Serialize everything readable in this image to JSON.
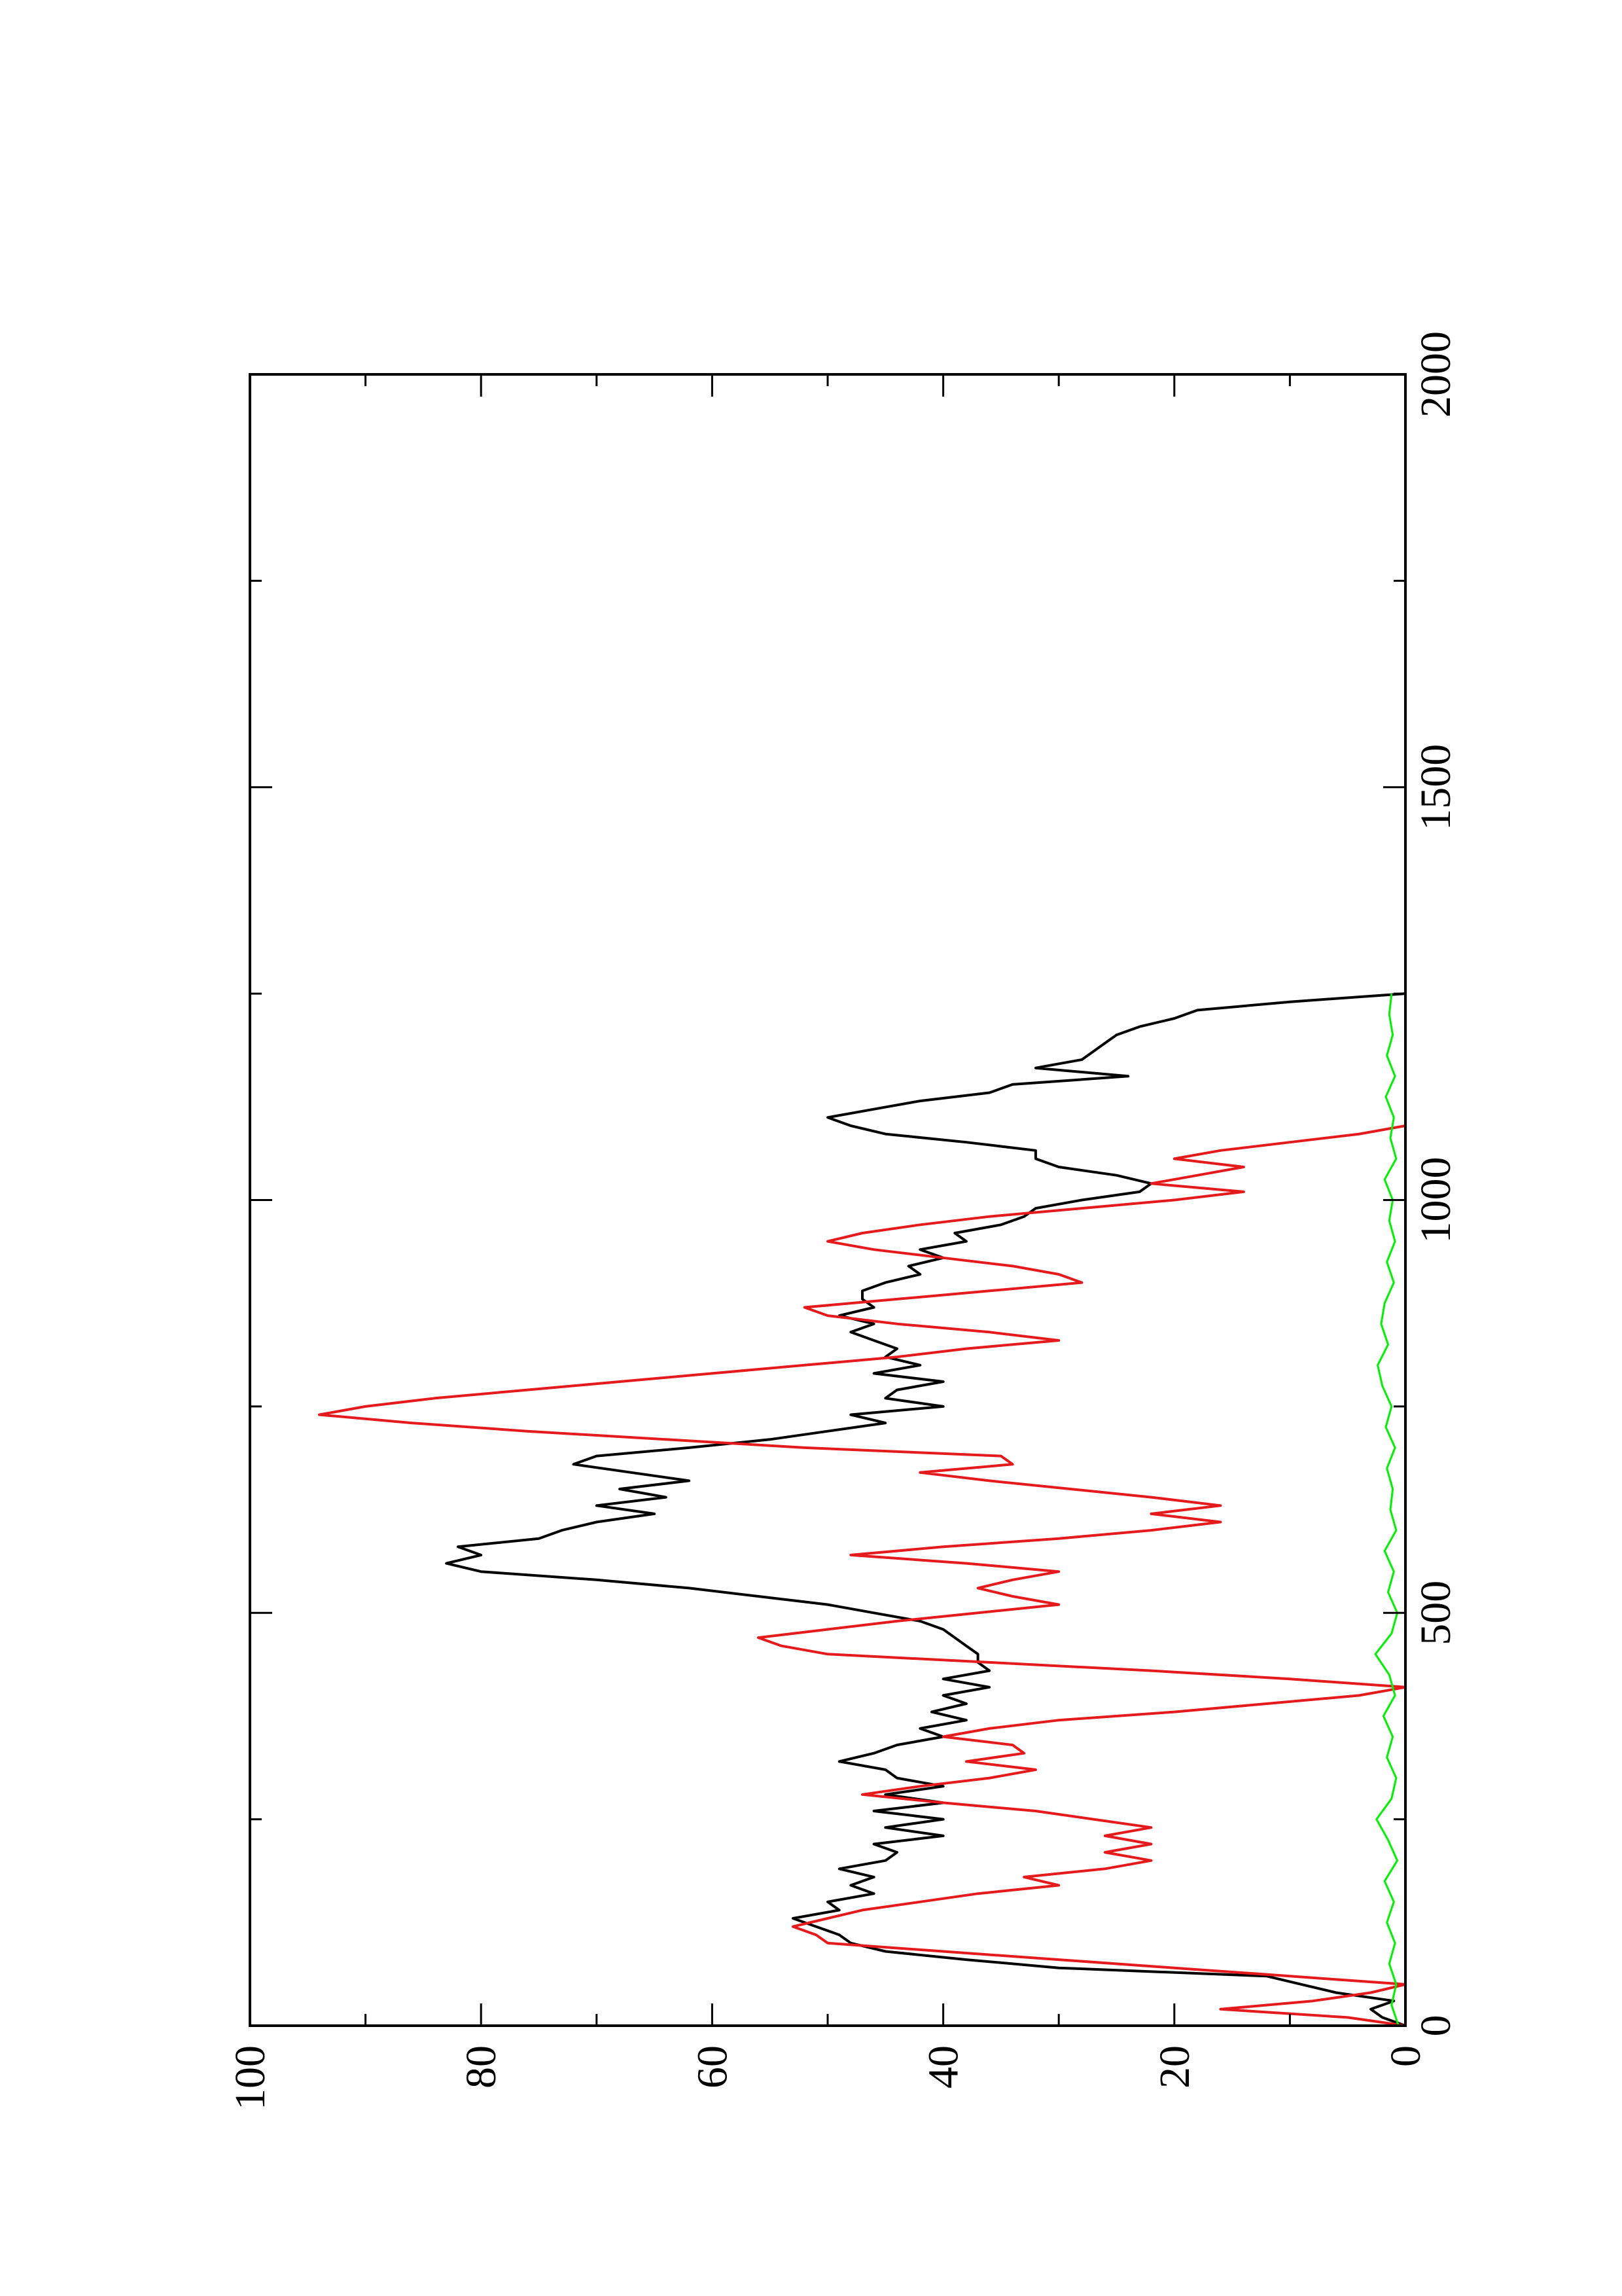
{
  "chart_data": {
    "type": "line",
    "title": "",
    "xlabel": "",
    "ylabel": "",
    "orientation": "rotated 90 degrees counter-clockwise",
    "xlim": [
      0,
      2000
    ],
    "ylim": [
      0,
      100
    ],
    "x_ticks": [
      0,
      500,
      1000,
      1500,
      2000
    ],
    "x_tick_labels": [
      "0",
      "500",
      "1000",
      "1500",
      "2000"
    ],
    "x_minor_ticks": [
      250,
      750,
      1250,
      1750
    ],
    "y_ticks": [
      0,
      20,
      40,
      60,
      80,
      100
    ],
    "y_tick_labels": [
      "0",
      "20",
      "40",
      "60",
      "80",
      "100"
    ],
    "y_minor_ticks": [
      10,
      30,
      50,
      70,
      90
    ],
    "grid": false,
    "legend": "none",
    "series": [
      {
        "color": "#000000",
        "x": [
          0,
          10,
          20,
          30,
          40,
          50,
          60,
          70,
          80,
          90,
          100,
          110,
          120,
          130,
          140,
          150,
          160,
          170,
          180,
          190,
          200,
          210,
          220,
          230,
          240,
          250,
          260,
          270,
          280,
          290,
          300,
          310,
          320,
          330,
          340,
          350,
          360,
          370,
          380,
          390,
          400,
          410,
          420,
          430,
          440,
          450,
          460,
          470,
          480,
          490,
          500,
          510,
          520,
          530,
          540,
          550,
          560,
          570,
          580,
          590,
          600,
          610,
          620,
          630,
          640,
          650,
          660,
          670,
          680,
          690,
          700,
          710,
          720,
          730,
          740,
          750,
          760,
          770,
          780,
          790,
          800,
          810,
          820,
          830,
          840,
          850,
          860,
          870,
          880,
          890,
          900,
          910,
          920,
          930,
          940,
          950,
          960,
          970,
          980,
          990,
          1000,
          1010,
          1020,
          1030,
          1040,
          1050,
          1060,
          1070,
          1080,
          1090,
          1100,
          1110,
          1120,
          1130,
          1140,
          1150,
          1160,
          1170,
          1180,
          1190,
          1200,
          1210,
          1220,
          1230,
          1240,
          1250
        ],
        "y": [
          0,
          2,
          3,
          1,
          6,
          9,
          12,
          30,
          38,
          45,
          48,
          49,
          51,
          53,
          49,
          50,
          46,
          48,
          46,
          49,
          45,
          44,
          46,
          40,
          45,
          40,
          46,
          40,
          45,
          40,
          44,
          45,
          49,
          46,
          44,
          40,
          42,
          38,
          41,
          38,
          40,
          36,
          40,
          36,
          37,
          37,
          38,
          39,
          40,
          42,
          46,
          50,
          56,
          62,
          70,
          80,
          83,
          80,
          82,
          75,
          73,
          70,
          65,
          70,
          64,
          68,
          62,
          67,
          72,
          70,
          62,
          55,
          50,
          45,
          48,
          40,
          45,
          44,
          40,
          46,
          42,
          45,
          44,
          46,
          48,
          46,
          49,
          46,
          47,
          47,
          45,
          42,
          43,
          40,
          42,
          38,
          39,
          35,
          33,
          32,
          28,
          23,
          22,
          25,
          30,
          32,
          32,
          38,
          45,
          48,
          50,
          46,
          42,
          36,
          34,
          24,
          32,
          28,
          27,
          26,
          25,
          23,
          20,
          18,
          10,
          0
        ]
      },
      {
        "color": "#e41a1c",
        "x": [
          0,
          10,
          20,
          30,
          40,
          50,
          60,
          70,
          80,
          90,
          100,
          110,
          120,
          130,
          140,
          150,
          160,
          170,
          180,
          190,
          200,
          210,
          220,
          230,
          240,
          250,
          260,
          270,
          280,
          290,
          300,
          310,
          320,
          330,
          340,
          350,
          360,
          370,
          380,
          390,
          400,
          410,
          420,
          430,
          440,
          450,
          460,
          470,
          480,
          490,
          500,
          510,
          520,
          530,
          540,
          550,
          560,
          570,
          580,
          590,
          600,
          610,
          620,
          630,
          640,
          650,
          660,
          670,
          680,
          690,
          700,
          710,
          720,
          730,
          740,
          750,
          760,
          770,
          780,
          790,
          800,
          810,
          820,
          830,
          840,
          850,
          860,
          870,
          880,
          890,
          900,
          910,
          920,
          930,
          940,
          950,
          960,
          970,
          980,
          990,
          1000,
          1010,
          1020,
          1030,
          1040,
          1050,
          1060,
          1070,
          1080,
          1090,
          1100,
          1110,
          1120,
          1130,
          1140,
          1150,
          1160,
          1170,
          1180,
          1190,
          1200,
          1210,
          1220,
          1230,
          1240,
          1250
        ],
        "y": [
          0,
          5,
          16,
          8,
          3,
          0,
          10,
          20,
          30,
          40,
          50,
          51,
          53,
          50,
          47,
          42,
          37,
          30,
          33,
          26,
          22,
          26,
          22,
          26,
          22,
          27,
          32,
          40,
          47,
          42,
          36,
          32,
          38,
          33,
          34,
          40,
          36,
          30,
          20,
          12,
          4,
          0,
          10,
          22,
          36,
          50,
          54,
          56,
          50,
          44,
          37,
          30,
          34,
          37,
          34,
          30,
          38,
          48,
          40,
          30,
          22,
          16,
          22,
          16,
          22,
          29,
          36,
          42,
          34,
          35,
          52,
          64,
          76,
          86,
          94,
          90,
          84,
          76,
          68,
          60,
          52,
          44,
          38,
          30,
          36,
          44,
          50,
          52,
          44,
          36,
          28,
          30,
          34,
          40,
          46,
          50,
          47,
          42,
          36,
          28,
          20,
          14,
          22,
          18,
          14,
          20,
          16,
          10,
          4,
          0,
          0,
          0,
          0,
          0,
          0,
          0,
          0,
          0,
          0,
          0,
          0,
          0,
          0,
          0,
          0,
          0
        ]
      },
      {
        "color": "#00ee00",
        "x": [
          0,
          25,
          50,
          75,
          100,
          125,
          150,
          175,
          200,
          225,
          250,
          275,
          300,
          325,
          350,
          375,
          400,
          425,
          450,
          475,
          500,
          525,
          550,
          575,
          600,
          625,
          650,
          675,
          700,
          725,
          750,
          775,
          800,
          825,
          850,
          875,
          900,
          925,
          950,
          975,
          1000,
          1025,
          1050,
          1075,
          1100,
          1125,
          1150,
          1175,
          1200,
          1225,
          1250
        ],
        "y": [
          0.6,
          1.2,
          0.8,
          1.4,
          0.9,
          1.6,
          1.0,
          1.8,
          0.7,
          1.5,
          2.5,
          1.2,
          0.8,
          1.6,
          1.1,
          1.9,
          0.9,
          1.4,
          2.6,
          1.2,
          0.7,
          1.5,
          1.0,
          1.8,
          0.8,
          1.3,
          1.1,
          1.6,
          0.9,
          1.7,
          1.2,
          2.0,
          2.4,
          1.5,
          2.1,
          1.8,
          1.0,
          1.6,
          0.9,
          1.4,
          1.1,
          1.8,
          0.8,
          1.3,
          1.0,
          1.7,
          0.9,
          1.6,
          1.1,
          1.4,
          1.2
        ]
      }
    ]
  }
}
